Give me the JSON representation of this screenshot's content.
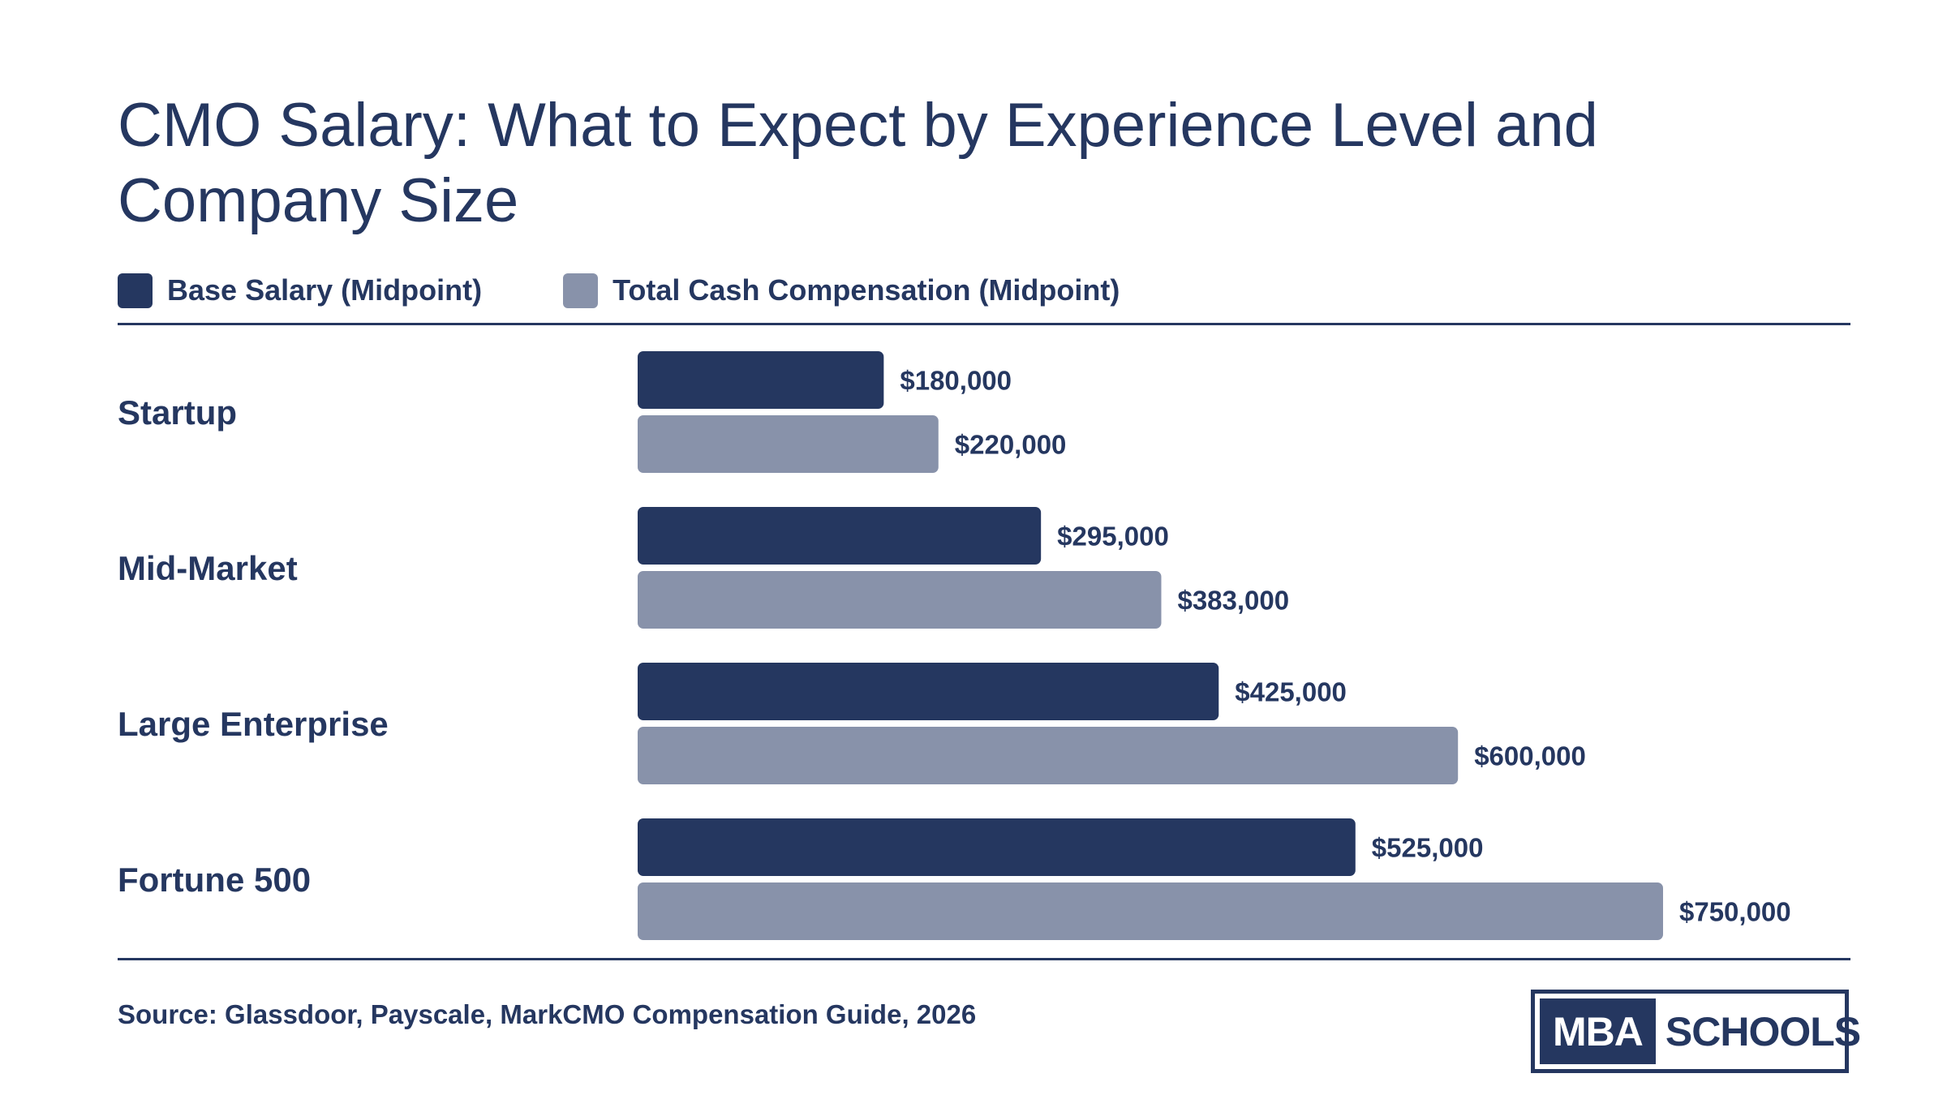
{
  "colors": {
    "primary": "#253760",
    "secondary": "#8892aa",
    "background": "#ffffff"
  },
  "chart_data": {
    "type": "bar",
    "orientation": "horizontal",
    "title": "CMO Salary: What to Expect by Experience Level and Company Size",
    "categories": [
      "Startup",
      "Mid-Market",
      "Large Enterprise",
      "Fortune 500"
    ],
    "series": [
      {
        "name": "Base Salary (Midpoint)",
        "color": "#253760",
        "values": [
          180000,
          295000,
          425000,
          525000
        ],
        "labels": [
          "$180,000",
          "$295,000",
          "$425,000",
          "$525,000"
        ]
      },
      {
        "name": "Total Cash Compensation (Midpoint)",
        "color": "#8892aa",
        "values": [
          220000,
          383000,
          600000,
          750000
        ],
        "labels": [
          "$220,000",
          "$383,000",
          "$600,000",
          "$750,000"
        ]
      }
    ],
    "xlim": [
      0,
      750000
    ],
    "grid": false,
    "legend_position": "top-left"
  },
  "footer": {
    "source": "Source: Glassdoor, Payscale, MarkCMO Compensation Guide, 2026"
  },
  "logo": {
    "left_text": "MBA",
    "right_text": "SCHOOLS"
  }
}
